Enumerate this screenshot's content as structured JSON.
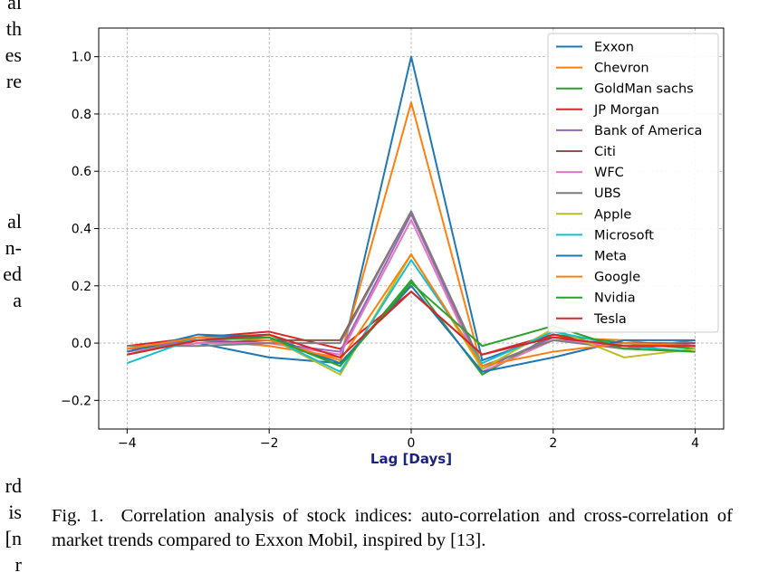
{
  "left_column_text": [
    [
      "al",
      "th",
      "es",
      "re"
    ],
    [
      "al",
      "n-",
      "ed",
      "a"
    ],
    [
      "rd",
      "is",
      "[n",
      "r"
    ]
  ],
  "caption": {
    "label": "Fig. 1.",
    "text": "Correlation analysis of stock indices: auto-correlation and cross-correlation of market trends compared to Exxon Mobil, inspired by [13]."
  },
  "chart_data": {
    "type": "line",
    "title": "",
    "xlabel": "Lag [Days]",
    "ylabel": "",
    "xlim": [
      -4.4,
      4.4
    ],
    "ylim": [
      -0.3,
      1.1
    ],
    "xticks": [
      -4,
      -2,
      0,
      2,
      4
    ],
    "xtick_labels": [
      "−4",
      "−2",
      "0",
      "2",
      "4"
    ],
    "yticks": [
      -0.2,
      0.0,
      0.2,
      0.4,
      0.6,
      0.8,
      1.0
    ],
    "ytick_labels": [
      "−0.2",
      "0.0",
      "0.2",
      "0.4",
      "0.6",
      "0.8",
      "1.0"
    ],
    "grid": true,
    "legend_position": "top-right",
    "xlabel_color": "#1a237e",
    "x": [
      -4,
      -3,
      -2,
      -1,
      0,
      1,
      2,
      3,
      4
    ],
    "series": [
      {
        "name": "Exxon",
        "color": "#1f77b4",
        "values": [
          -0.02,
          0.0,
          -0.05,
          -0.07,
          1.0,
          -0.06,
          0.03,
          0.0,
          -0.01
        ]
      },
      {
        "name": "Chevron",
        "color": "#ff7f0e",
        "values": [
          -0.02,
          0.01,
          -0.01,
          -0.05,
          0.84,
          -0.09,
          0.02,
          0.01,
          -0.02
        ]
      },
      {
        "name": "GoldMan sachs",
        "color": "#2ca02c",
        "values": [
          -0.03,
          0.02,
          0.03,
          -0.08,
          0.22,
          -0.11,
          0.03,
          0.0,
          -0.02
        ]
      },
      {
        "name": "JP Morgan",
        "color": "#d62728",
        "values": [
          -0.01,
          0.02,
          0.04,
          -0.02,
          0.18,
          -0.04,
          0.03,
          -0.02,
          0.0
        ]
      },
      {
        "name": "Bank of America",
        "color": "#9467bd",
        "values": [
          -0.02,
          0.01,
          0.0,
          -0.03,
          0.45,
          -0.09,
          0.02,
          -0.01,
          0.0
        ]
      },
      {
        "name": "Citi",
        "color": "#8c564b",
        "values": [
          -0.03,
          0.0,
          0.01,
          0.01,
          0.46,
          -0.08,
          0.01,
          0.0,
          0.0
        ]
      },
      {
        "name": "WFC",
        "color": "#e377c2",
        "values": [
          -0.03,
          0.0,
          0.0,
          -0.04,
          0.43,
          -0.1,
          0.01,
          -0.01,
          -0.01
        ]
      },
      {
        "name": "UBS",
        "color": "#7f7f7f",
        "values": [
          -0.01,
          -0.01,
          0.0,
          0.0,
          0.46,
          -0.08,
          0.01,
          -0.02,
          0.01
        ]
      },
      {
        "name": "Apple",
        "color": "#bcbd22",
        "values": [
          -0.04,
          0.01,
          0.02,
          -0.11,
          0.31,
          -0.09,
          0.05,
          -0.05,
          -0.02
        ]
      },
      {
        "name": "Microsoft",
        "color": "#17becf",
        "values": [
          -0.07,
          0.02,
          0.02,
          -0.1,
          0.29,
          -0.07,
          0.04,
          -0.01,
          -0.03
        ]
      },
      {
        "name": "Meta",
        "color": "#1f77b4",
        "values": [
          -0.03,
          0.03,
          0.02,
          -0.07,
          0.2,
          -0.1,
          -0.05,
          0.01,
          0.01
        ]
      },
      {
        "name": "Google",
        "color": "#ff7f0e",
        "values": [
          -0.02,
          0.02,
          0.01,
          -0.06,
          0.31,
          -0.08,
          -0.03,
          0.0,
          -0.01
        ]
      },
      {
        "name": "Nvidia",
        "color": "#2ca02c",
        "values": [
          -0.04,
          0.01,
          0.02,
          -0.08,
          0.21,
          -0.01,
          0.06,
          -0.02,
          -0.03
        ]
      },
      {
        "name": "Tesla",
        "color": "#d62728",
        "values": [
          -0.04,
          0.01,
          0.03,
          -0.05,
          0.18,
          -0.04,
          0.02,
          -0.01,
          -0.01
        ]
      }
    ]
  }
}
